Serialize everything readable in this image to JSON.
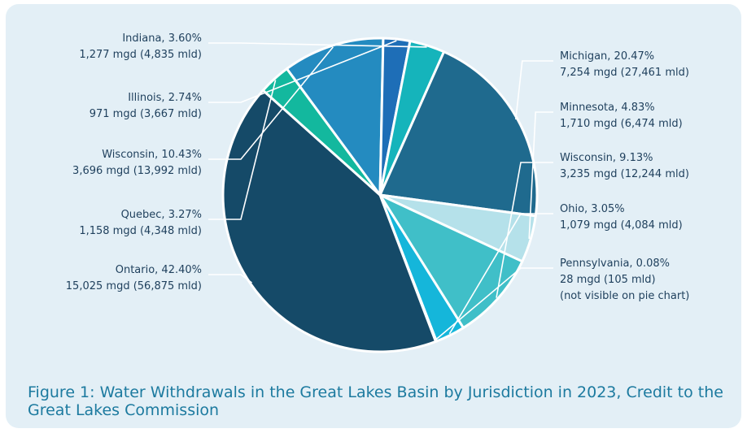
{
  "chart_data": {
    "type": "pie",
    "title": "",
    "slices": [
      {
        "name": "Michigan",
        "percent": 20.47,
        "label1": "Michigan, 20.47%",
        "label2": "7,254 mgd (27,461 mld)",
        "color": "#1f6a8e"
      },
      {
        "name": "Minnesota",
        "percent": 4.83,
        "label1": "Minnesota, 4.83%",
        "label2": "1,710 mgd (6,474 mld)",
        "color": "#b5e1ea"
      },
      {
        "name": "Wisconsin",
        "percent": 9.13,
        "label1": "Wisconsin, 9.13%",
        "label2": "3,235 mgd (12,244 mld)",
        "color": "#40bfc8"
      },
      {
        "name": "Ohio",
        "percent": 3.05,
        "label1": "Ohio, 3.05%",
        "label2": "1,079 mgd (4,084 mld)",
        "color": "#15b6da"
      },
      {
        "name": "Pennsylvania",
        "percent": 0.08,
        "label1": "Pennsylvania, 0.08%",
        "label2": "28 mgd (105 mld)",
        "label3": "(not visible on pie chart)",
        "color": "#5ab0cf"
      },
      {
        "name": "Ontario",
        "percent": 42.4,
        "label1": "Ontario, 42.40%",
        "label2": "15,025 mgd (56,875 mld)",
        "color": "#154a68"
      },
      {
        "name": "Quebec",
        "percent": 3.27,
        "label1": "Quebec, 3.27%",
        "label2": "1,158 mgd (4,348 mld)",
        "color": "#13b89e"
      },
      {
        "name": "Wisconsin",
        "percent": 10.43,
        "label1": "Wisconsin, 10.43%",
        "label2": "3,696 mgd (13,992 mld)",
        "color": "#248bc0"
      },
      {
        "name": "Illinois",
        "percent": 2.74,
        "label1": "Illinois, 2.74%",
        "label2": "971 mgd (3,667 mld)",
        "color": "#1e6eb7"
      },
      {
        "name": "Indiana",
        "percent": 3.6,
        "label1": "Indiana, 3.60%",
        "label2": "1,277 mgd (4,835 mld)",
        "color": "#15b4bb"
      }
    ]
  },
  "caption": "Figure 1: Water Withdrawals in the Great Lakes Basin by Jurisdiction in 2023, Credit to the Great Lakes Commission"
}
